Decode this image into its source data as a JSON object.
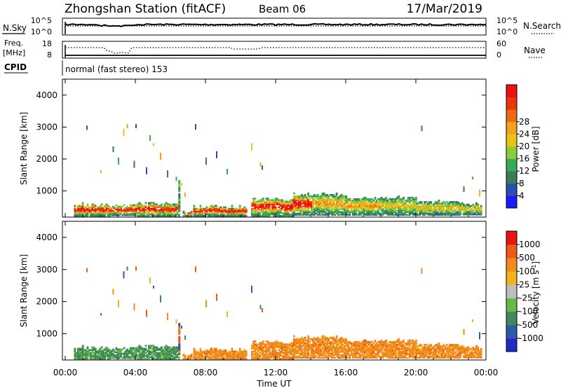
{
  "header": {
    "station": "Zhongshan Station (fitACF)",
    "beam": "Beam 06",
    "date": "17/Mar/2019"
  },
  "panels": {
    "nsky": {
      "label": "N.Sky",
      "left_ticks": [
        "10^5",
        "10^0"
      ],
      "right_ticks": [
        "10^5",
        "10^0"
      ],
      "right_label": "N.Search"
    },
    "freq": {
      "label_line1": "Freq.",
      "label_line2": "[MHz]",
      "left_ticks": [
        "18",
        "8"
      ],
      "right_ticks": [
        "60",
        "0"
      ],
      "right_label": "Nave"
    },
    "cpid": {
      "label": "CPID",
      "mode": "normal (fast stereo) 153"
    }
  },
  "colors": {
    "power": [
      "#1a1aff",
      "#2b4fb0",
      "#3d7a55",
      "#38a85a",
      "#8acb3a",
      "#e8c417",
      "#f0a21c",
      "#ee6a12",
      "#e8360e",
      "#ee1111"
    ],
    "velocity": [
      "#e81414",
      "#ee5a18",
      "#f08c1e",
      "#f4b21e",
      "#bebebe",
      "#6ab84a",
      "#3f8a5a",
      "#2f5aa8",
      "#1f2ccc"
    ]
  },
  "chart_data": [
    {
      "type": "heatmap",
      "panel": "power",
      "ylabel": "Slant Range [km]",
      "xlim": [
        0,
        24
      ],
      "ylim": [
        180,
        4500
      ],
      "yticks": [
        1000,
        2000,
        3000,
        4000
      ],
      "ytick_labels": [
        "1000",
        "2000",
        "3000",
        "4000"
      ],
      "colorbar": {
        "label": "Power [dB]",
        "ticks": [
          "4",
          "8",
          "12",
          "16",
          "20",
          "24",
          "28"
        ],
        "range": [
          0,
          32
        ]
      }
    },
    {
      "type": "heatmap",
      "panel": "velocity",
      "ylabel": "Slant Range [km]",
      "xlabel": "Time UT",
      "xlim": [
        0,
        24
      ],
      "ylim": [
        180,
        4500
      ],
      "yticks": [
        1000,
        2000,
        3000,
        4000
      ],
      "ytick_labels": [
        "1000",
        "2000",
        "3000",
        "4000"
      ],
      "xtick_labels": [
        "00:00",
        "04:00",
        "08:00",
        "12:00",
        "16:00",
        "20:00",
        "00:00"
      ],
      "colorbar": {
        "label": "Velocity [m s^-1]",
        "ticks": [
          "1000",
          "500",
          "100",
          "25",
          "-25",
          "-100",
          "-500",
          "-1000"
        ]
      }
    }
  ]
}
